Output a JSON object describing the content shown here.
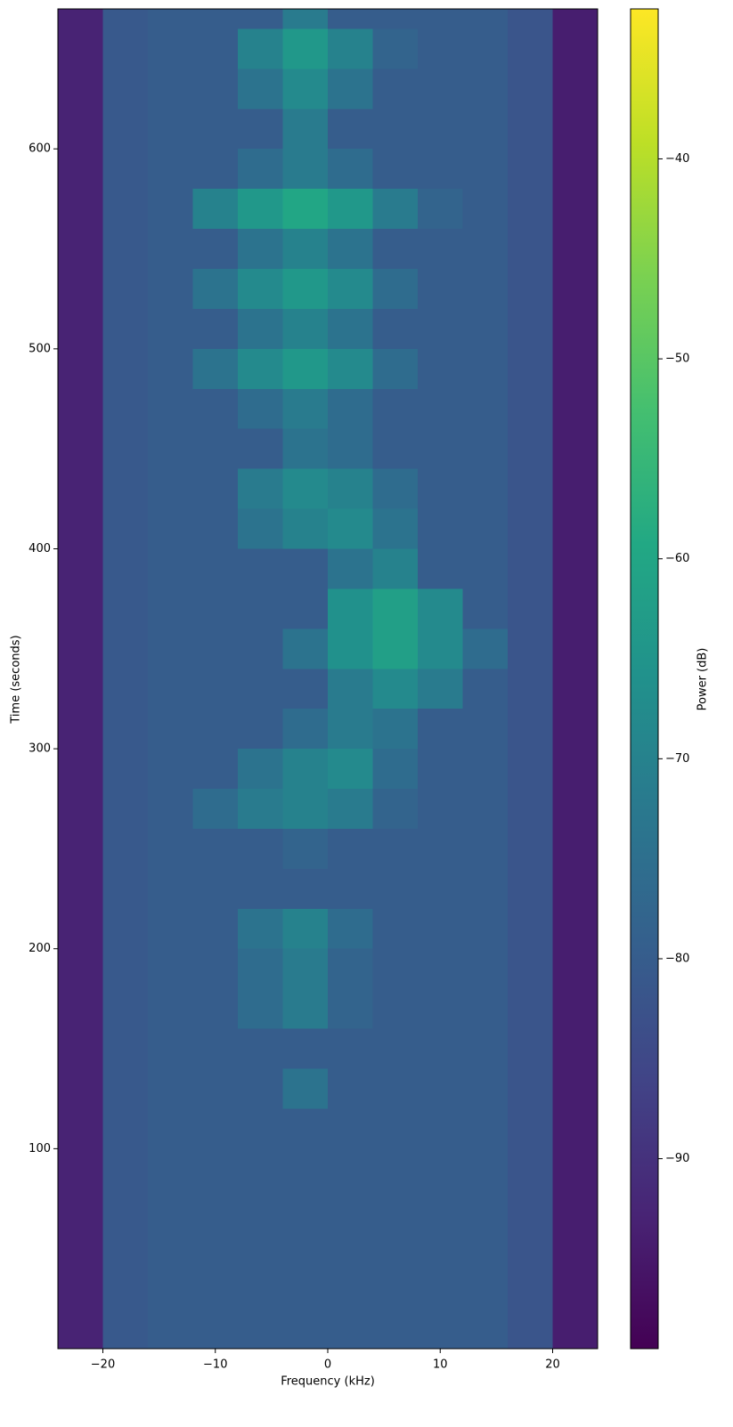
{
  "chart_data": {
    "type": "heatmap",
    "xlabel": "Frequency (kHz)",
    "ylabel": "Time (seconds)",
    "colorbar_label": "Power (dB)",
    "colormap": "viridis",
    "xlim": [
      -24,
      24
    ],
    "ylim": [
      0,
      670
    ],
    "clim": [
      -99.5,
      -32.5
    ],
    "xticks": [
      {
        "value": -20,
        "label": "−20"
      },
      {
        "value": -10,
        "label": "−10"
      },
      0,
      10,
      20
    ],
    "yticks": [
      100,
      200,
      300,
      400,
      500,
      600
    ],
    "cticks": [
      {
        "value": -90,
        "label": "−90"
      },
      {
        "value": -80,
        "label": "−80"
      },
      {
        "value": -70,
        "label": "−70"
      },
      {
        "value": -60,
        "label": "−60"
      },
      {
        "value": -50,
        "label": "−50"
      },
      {
        "value": -40,
        "label": "−40"
      }
    ],
    "x_edges": [
      -24,
      -20,
      -16,
      -12,
      -8,
      -4,
      0,
      4,
      8,
      12,
      16,
      20,
      24
    ],
    "y_edges": [
      0,
      20,
      40,
      60,
      80,
      100,
      120,
      140,
      160,
      180,
      200,
      220,
      240,
      260,
      280,
      300,
      320,
      340,
      360,
      380,
      400,
      420,
      440,
      460,
      480,
      500,
      520,
      540,
      560,
      580,
      600,
      620,
      640,
      660,
      670
    ],
    "values": [
      [
        -93,
        -81,
        -80,
        -80,
        -80,
        -80,
        -80,
        -80,
        -80,
        -80,
        -82,
        -94
      ],
      [
        -93,
        -81,
        -80,
        -80,
        -80,
        -80,
        -80,
        -80,
        -80,
        -80,
        -82,
        -94
      ],
      [
        -93,
        -81,
        -80,
        -80,
        -80,
        -80,
        -80,
        -80,
        -80,
        -80,
        -82,
        -94
      ],
      [
        -93,
        -81,
        -80,
        -80,
        -80,
        -80,
        -80,
        -80,
        -80,
        -80,
        -82,
        -94
      ],
      [
        -93,
        -81,
        -80,
        -80,
        -80,
        -80,
        -80,
        -80,
        -80,
        -80,
        -82,
        -94
      ],
      [
        -93,
        -81,
        -80,
        -80,
        -80,
        -80,
        -80,
        -80,
        -80,
        -80,
        -82,
        -94
      ],
      [
        -93,
        -81,
        -80,
        -80,
        -80,
        -74,
        -80,
        -80,
        -80,
        -80,
        -82,
        -94
      ],
      [
        -93,
        -81,
        -80,
        -80,
        -80,
        -80,
        -80,
        -80,
        -80,
        -80,
        -82,
        -94
      ],
      [
        -93,
        -81,
        -80,
        -80,
        -76,
        -72,
        -78,
        -80,
        -80,
        -80,
        -82,
        -94
      ],
      [
        -93,
        -81,
        -80,
        -80,
        -76,
        -72,
        -78,
        -80,
        -80,
        -80,
        -82,
        -94
      ],
      [
        -93,
        -81,
        -80,
        -80,
        -74,
        -70,
        -76,
        -80,
        -80,
        -80,
        -82,
        -94
      ],
      [
        -93,
        -81,
        -80,
        -80,
        -80,
        -80,
        -80,
        -80,
        -80,
        -80,
        -82,
        -94
      ],
      [
        -93,
        -81,
        -80,
        -80,
        -80,
        -78,
        -80,
        -80,
        -80,
        -80,
        -82,
        -94
      ],
      [
        -93,
        -81,
        -80,
        -76,
        -72,
        -70,
        -72,
        -78,
        -80,
        -80,
        -82,
        -94
      ],
      [
        -93,
        -81,
        -80,
        -80,
        -74,
        -70,
        -68,
        -76,
        -80,
        -80,
        -82,
        -94
      ],
      [
        -93,
        -81,
        -80,
        -80,
        -80,
        -76,
        -72,
        -74,
        -80,
        -80,
        -82,
        -94
      ],
      [
        -93,
        -81,
        -80,
        -80,
        -80,
        -80,
        -72,
        -68,
        -72,
        -80,
        -82,
        -94
      ],
      [
        -93,
        -81,
        -80,
        -80,
        -80,
        -74,
        -66,
        -62,
        -68,
        -76,
        -82,
        -94
      ],
      [
        -93,
        -81,
        -80,
        -80,
        -80,
        -80,
        -66,
        -62,
        -68,
        -80,
        -82,
        -94
      ],
      [
        -93,
        -81,
        -80,
        -80,
        -80,
        -80,
        -74,
        -70,
        -80,
        -80,
        -82,
        -94
      ],
      [
        -93,
        -81,
        -80,
        -80,
        -74,
        -70,
        -68,
        -74,
        -80,
        -80,
        -82,
        -94
      ],
      [
        -93,
        -81,
        -80,
        -80,
        -72,
        -68,
        -70,
        -76,
        -80,
        -80,
        -82,
        -94
      ],
      [
        -93,
        -81,
        -80,
        -80,
        -80,
        -74,
        -76,
        -80,
        -80,
        -80,
        -82,
        -94
      ],
      [
        -93,
        -81,
        -80,
        -80,
        -76,
        -72,
        -76,
        -80,
        -80,
        -80,
        -82,
        -94
      ],
      [
        -93,
        -81,
        -80,
        -74,
        -68,
        -64,
        -68,
        -76,
        -80,
        -80,
        -82,
        -94
      ],
      [
        -93,
        -81,
        -80,
        -80,
        -74,
        -70,
        -74,
        -80,
        -80,
        -80,
        -82,
        -94
      ],
      [
        -93,
        -81,
        -80,
        -74,
        -68,
        -64,
        -68,
        -76,
        -80,
        -80,
        -82,
        -94
      ],
      [
        -93,
        -81,
        -80,
        -80,
        -74,
        -70,
        -74,
        -80,
        -80,
        -80,
        -82,
        -94
      ],
      [
        -93,
        -81,
        -80,
        -70,
        -64,
        -60,
        -64,
        -72,
        -78,
        -80,
        -82,
        -94
      ],
      [
        -93,
        -81,
        -80,
        -80,
        -76,
        -72,
        -76,
        -80,
        -80,
        -80,
        -82,
        -94
      ],
      [
        -93,
        -81,
        -80,
        -80,
        -80,
        -72,
        -80,
        -80,
        -80,
        -80,
        -82,
        -94
      ],
      [
        -93,
        -81,
        -80,
        -80,
        -74,
        -68,
        -74,
        -80,
        -80,
        -80,
        -82,
        -94
      ],
      [
        -93,
        -81,
        -80,
        -80,
        -70,
        -64,
        -70,
        -78,
        -80,
        -80,
        -82,
        -94
      ],
      [
        -93,
        -81,
        -80,
        -80,
        -80,
        -72,
        -80,
        -80,
        -80,
        -80,
        -82,
        -94
      ]
    ]
  }
}
